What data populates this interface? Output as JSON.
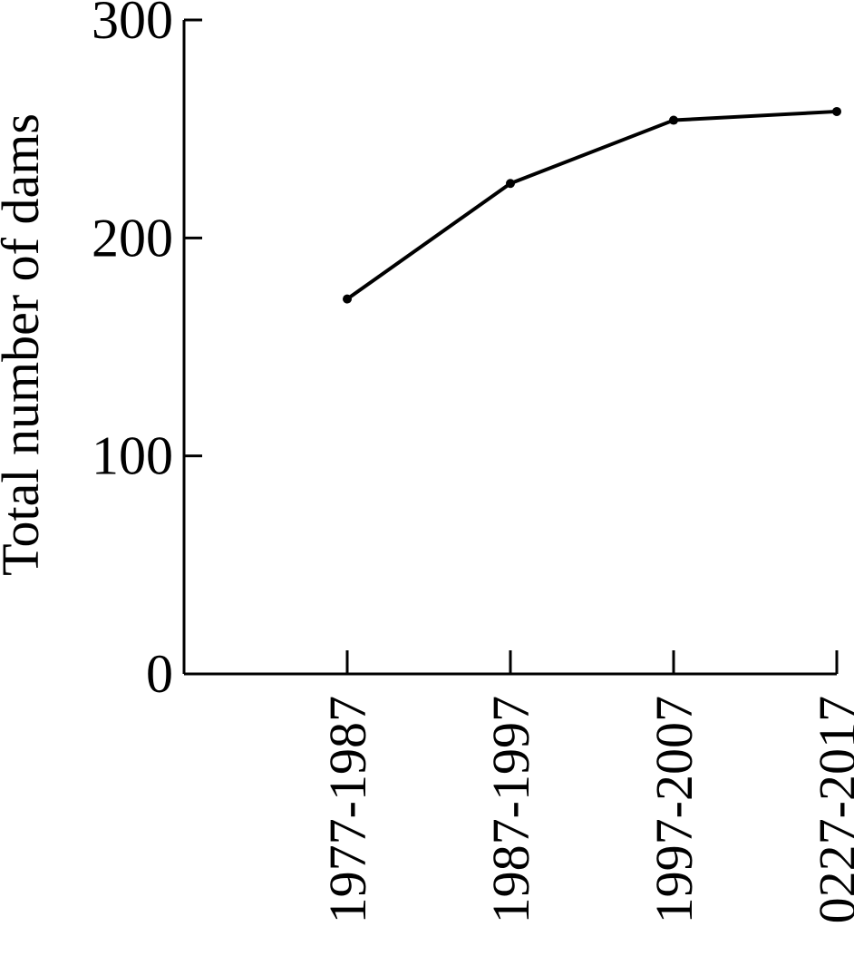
{
  "chart_data": {
    "type": "line",
    "categories": [
      "1977-1987",
      "1987-1997",
      "1997-2007",
      "0227-2017"
    ],
    "series": [
      {
        "values": [
          172,
          225,
          254,
          258
        ]
      }
    ],
    "ylabel": "Total number of dams",
    "xlabel": "",
    "ylim": [
      0,
      300
    ],
    "yticks": [
      "0",
      "100",
      "200",
      "300"
    ],
    "grid": false,
    "colors": {
      "line": "#000000",
      "axis": "#000000"
    }
  }
}
